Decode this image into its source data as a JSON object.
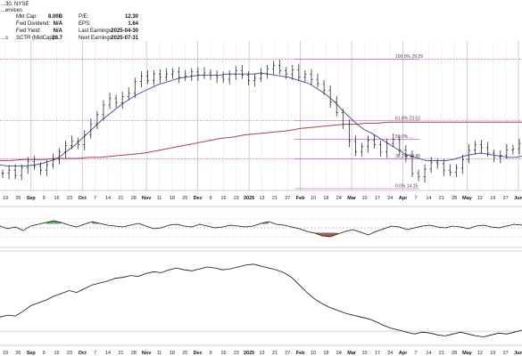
{
  "header": {
    "symbol_line": "...30, NYSE",
    "subtitle": "...ervices",
    "left_tag": "...s",
    "fields": [
      {
        "label": "Mkt Cap:",
        "value": "8.00B"
      },
      {
        "label": "Fwd Dividend:",
        "value": "N/A"
      },
      {
        "label": "Fwd Yield:",
        "value": "N/A"
      },
      {
        "label": "SCTR (MidCap):",
        "value": "28.7"
      }
    ],
    "fields_right": [
      {
        "label": "P/E:",
        "value": "12.30"
      },
      {
        "label": "EPS:",
        "value": "1.64"
      },
      {
        "label": "Last Earnings:",
        "value": "2025-04-30"
      },
      {
        "label": "Next Earnings:",
        "value": "2025-07-31"
      }
    ]
  },
  "colors": {
    "price_bars": "#111111",
    "ma_short": "#3f4c9a",
    "ma_long": "#b03b5e",
    "fib": "#c243c2",
    "gridline": "#cfcfcf",
    "ind_up_fill": "#3f9a49",
    "ind_down_fill": "#9a3b3b"
  },
  "chart_data": {
    "type": "line",
    "x_tick_labels": [
      "19",
      "26",
      "Sep",
      "9",
      "16",
      "23",
      "Oct",
      "7",
      "14",
      "21",
      "28",
      "Nov",
      "11",
      "18",
      "25",
      "Dec",
      "9",
      "16",
      "23",
      "2025",
      "13",
      "21",
      "27",
      "Feb",
      "10",
      "18",
      "24",
      "Mar",
      "10",
      "17",
      "24",
      "Apr",
      "7",
      "14",
      "21",
      "28",
      "May",
      "12",
      "19",
      "27",
      "Jun"
    ],
    "bold_ticks": [
      "Sep",
      "Oct",
      "Nov",
      "Dec",
      "2025",
      "Feb",
      "Mar",
      "Apr",
      "May",
      "Jun"
    ],
    "price_ylim": [
      17.0,
      31.0
    ],
    "price": [
      18.6,
      18.9,
      18.4,
      19.1,
      19.7,
      19.3,
      18.9,
      19.4,
      19.9,
      20.6,
      21.2,
      21.6,
      21.3,
      22.2,
      23.2,
      24.1,
      25.0,
      25.6,
      25.2,
      25.8,
      26.1,
      27.2,
      27.7,
      27.3,
      27.9,
      27.6,
      27.9,
      28.1,
      27.6,
      27.7,
      28.1,
      27.8,
      28.0,
      27.8,
      27.6,
      27.4,
      27.9,
      28.2,
      27.8,
      27.3,
      27.5,
      27.9,
      28.4,
      28.7,
      28.2,
      27.9,
      28.3,
      27.6,
      27.9,
      27.4,
      27.0,
      26.4,
      25.3,
      24.3,
      23.2,
      21.6,
      20.6,
      21.1,
      21.7,
      21.3,
      20.6,
      21.4,
      21.8,
      20.8,
      20.2,
      18.6,
      18.3,
      19.0,
      19.6,
      19.5,
      18.9,
      18.7,
      19.1,
      19.9,
      20.8,
      21.3,
      21.0,
      20.5,
      20.1,
      20.3,
      20.8,
      20.9,
      21.4
    ],
    "ma_short": [
      19.4,
      19.3,
      19.3,
      19.3,
      19.3,
      19.4,
      19.5,
      19.7,
      19.9,
      20.3,
      20.8,
      21.3,
      21.9,
      22.5,
      23.1,
      23.7,
      24.2,
      24.7,
      25.2,
      25.6,
      26.0,
      26.3,
      26.6,
      26.9,
      27.1,
      27.3,
      27.5,
      27.6,
      27.7,
      27.8,
      27.8,
      27.8,
      27.8,
      27.9,
      27.9,
      27.9,
      27.9,
      27.9,
      28.0,
      27.9,
      27.8,
      27.7,
      27.6,
      27.4,
      27.2,
      27.0,
      26.6,
      26.2,
      25.7,
      25.1,
      24.4,
      23.8,
      23.2,
      22.7,
      22.4,
      22.0,
      21.6,
      21.2,
      20.8,
      20.4,
      20.2,
      20.0,
      19.8,
      19.8,
      19.8,
      19.8,
      19.9,
      20.1,
      20.3,
      20.4,
      20.5,
      20.4,
      20.3,
      20.2,
      20.1,
      20.1,
      20.2
    ],
    "ma_long": [
      19.8,
      19.8,
      19.9,
      19.9,
      19.9,
      20.0,
      20.0,
      20.0,
      20.1,
      20.1,
      20.2,
      20.3,
      20.4,
      20.5,
      20.7,
      20.9,
      21.1,
      21.3,
      21.5,
      21.7,
      21.9,
      22.0,
      22.2,
      22.3,
      22.4,
      22.5,
      22.6,
      22.8,
      22.9,
      23.0,
      23.1,
      23.2,
      23.2,
      23.3,
      23.3,
      23.4,
      23.4,
      23.4,
      23.4,
      23.4,
      23.4,
      23.4,
      23.4,
      23.4,
      23.4,
      23.4,
      23.4,
      23.4
    ],
    "fib_levels": [
      {
        "label": "100.0% 29.29",
        "value": 29.29
      },
      {
        "label": "61.8% 23.52",
        "value": 23.52
      },
      {
        "label": "38.2% 19.95",
        "value": 19.95
      },
      {
        "label": "0.0% 14.15",
        "value": 14.15
      }
    ],
    "fib_labels_visible": [
      "100.0% 29.29",
      "61.8% 23.52",
      "38.2% 19.95",
      "0.0% 14.15"
    ],
    "fib_partial_label": "50.0% ...",
    "indicator1": [
      0.2,
      -0.1,
      0.1,
      -0.3,
      0.2,
      0.4,
      0.6,
      0.8,
      0.6,
      0.3,
      0.1,
      0.4,
      0.7,
      0.5,
      0.3,
      0.2,
      0.1,
      0.3,
      0.5,
      0.2,
      -0.1,
      0.0,
      0.3,
      0.4,
      0.2,
      0.1,
      0.4,
      0.2,
      0.0,
      0.1,
      0.3,
      0.2,
      0.1,
      0.2,
      0.5,
      0.7,
      0.4,
      0.3,
      0.1,
      -0.1,
      -0.4,
      -0.6,
      -0.9,
      -1.0,
      -0.7,
      -0.4,
      -0.2,
      -0.5,
      -0.8,
      -0.4,
      -0.1,
      0.2,
      0.1,
      -0.2,
      0.0,
      0.2,
      0.3,
      0.1,
      0.0,
      0.2,
      0.1,
      -0.1,
      0.2,
      0.3,
      0.1,
      0.0,
      0.2,
      0.4,
      0.3
    ],
    "indicator2": [
      0.3,
      0.32,
      0.31,
      0.36,
      0.42,
      0.45,
      0.48,
      0.52,
      0.55,
      0.58,
      0.56,
      0.6,
      0.64,
      0.66,
      0.68,
      0.71,
      0.72,
      0.74,
      0.73,
      0.76,
      0.78,
      0.77,
      0.8,
      0.82,
      0.8,
      0.79,
      0.81,
      0.83,
      0.82,
      0.8,
      0.81,
      0.83,
      0.85,
      0.86,
      0.84,
      0.82,
      0.8,
      0.77,
      0.72,
      0.64,
      0.56,
      0.49,
      0.44,
      0.4,
      0.37,
      0.34,
      0.32,
      0.3,
      0.28,
      0.25,
      0.21,
      0.18,
      0.16,
      0.14,
      0.12,
      0.14,
      0.13,
      0.11,
      0.1,
      0.12,
      0.14,
      0.12,
      0.1,
      0.09,
      0.11,
      0.13,
      0.12,
      0.14,
      0.16
    ],
    "price_grid_values": [
      23.52,
      19.95
    ]
  }
}
